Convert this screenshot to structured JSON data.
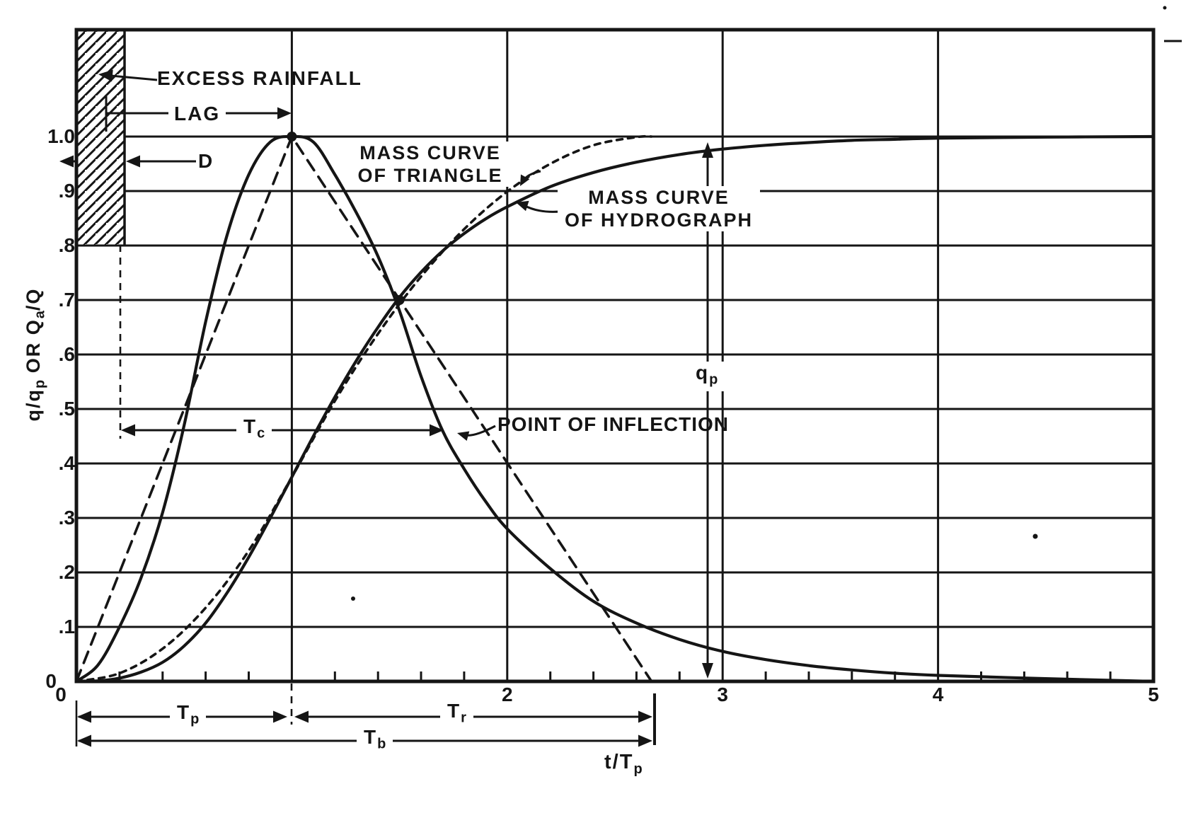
{
  "labels": {
    "excess_rainfall": "EXCESS RAINFALL",
    "lag": "LAG",
    "d": "D",
    "mass_curve_triangle_line1": "MASS CURVE",
    "mass_curve_triangle_line2": "OF TRIANGLE",
    "mass_curve_hydrograph_line1": "MASS CURVE",
    "mass_curve_hydrograph_line2": "OF HYDROGRAPH",
    "point_of_inflection": "POINT OF INFLECTION",
    "qp": {
      "main": "q",
      "sub": "p"
    },
    "tc": {
      "main": "T",
      "sub": "c"
    },
    "tp": {
      "main": "T",
      "sub": "p"
    },
    "tr": {
      "main": "T",
      "sub": "r"
    },
    "tb": {
      "main": "T",
      "sub": "b"
    },
    "x_axis": {
      "main": "t/T",
      "sub": "p"
    },
    "y_axis": {
      "p1": "q/q",
      "s1": "p",
      "p2": " OR Q",
      "s2": "a",
      "p3": "/Q"
    }
  },
  "ticks": {
    "y": [
      {
        "v": 1.0,
        "text": "1.0"
      },
      {
        "v": 0.9,
        "text": ".9"
      },
      {
        "v": 0.8,
        "text": ".8"
      },
      {
        "v": 0.7,
        "text": ".7"
      },
      {
        "v": 0.6,
        "text": ".6"
      },
      {
        "v": 0.5,
        "text": ".5"
      },
      {
        "v": 0.4,
        "text": ".4"
      },
      {
        "v": 0.3,
        "text": ".3"
      },
      {
        "v": 0.2,
        "text": ".2"
      },
      {
        "v": 0.1,
        "text": ".1"
      },
      {
        "v": 0.0,
        "text": "0"
      }
    ],
    "x": [
      {
        "v": 0,
        "text": "0"
      },
      {
        "v": 2,
        "text": "2"
      },
      {
        "v": 3,
        "text": "3"
      },
      {
        "v": 4,
        "text": "4"
      },
      {
        "v": 5,
        "text": "5"
      }
    ]
  },
  "chart_data": {
    "type": "line",
    "title": "",
    "xlabel": "t/Tp",
    "ylabel": "q/qp OR Qa/Q",
    "xlim": [
      0,
      5
    ],
    "ylim": [
      0,
      1.2
    ],
    "x_major_gridlines": [
      1,
      2,
      3,
      4
    ],
    "x_minor_tick_step": 0.2,
    "grid": "on",
    "ink_color": "#151515",
    "series": [
      {
        "name": "dimensionless unit hydrograph",
        "style": "solid",
        "shape": "smooth",
        "points": [
          [
            0,
            0
          ],
          [
            0.1,
            0.03
          ],
          [
            0.2,
            0.1
          ],
          [
            0.3,
            0.19
          ],
          [
            0.4,
            0.31
          ],
          [
            0.5,
            0.47
          ],
          [
            0.6,
            0.66
          ],
          [
            0.7,
            0.82
          ],
          [
            0.8,
            0.93
          ],
          [
            0.9,
            0.99
          ],
          [
            1.0,
            1.0
          ],
          [
            1.1,
            0.99
          ],
          [
            1.2,
            0.93
          ],
          [
            1.3,
            0.86
          ],
          [
            1.4,
            0.78
          ],
          [
            1.5,
            0.68
          ],
          [
            1.6,
            0.56
          ],
          [
            1.7,
            0.46
          ],
          [
            1.8,
            0.39
          ],
          [
            1.9,
            0.33
          ],
          [
            2.0,
            0.28
          ],
          [
            2.2,
            0.207
          ],
          [
            2.4,
            0.147
          ],
          [
            2.6,
            0.107
          ],
          [
            2.8,
            0.077
          ],
          [
            3.0,
            0.055
          ],
          [
            3.2,
            0.04
          ],
          [
            3.4,
            0.029
          ],
          [
            3.6,
            0.021
          ],
          [
            3.8,
            0.015
          ],
          [
            4.0,
            0.011
          ],
          [
            4.5,
            0.005
          ],
          [
            5.0,
            0.0
          ]
        ]
      },
      {
        "name": "mass curve of hydrograph",
        "style": "solid",
        "shape": "smooth",
        "points": [
          [
            0,
            0
          ],
          [
            0.1,
            0.001
          ],
          [
            0.2,
            0.006
          ],
          [
            0.3,
            0.017
          ],
          [
            0.4,
            0.035
          ],
          [
            0.5,
            0.065
          ],
          [
            0.6,
            0.107
          ],
          [
            0.7,
            0.163
          ],
          [
            0.8,
            0.228
          ],
          [
            0.9,
            0.3
          ],
          [
            1.0,
            0.375
          ],
          [
            1.1,
            0.45
          ],
          [
            1.2,
            0.522
          ],
          [
            1.3,
            0.589
          ],
          [
            1.4,
            0.65
          ],
          [
            1.5,
            0.705
          ],
          [
            1.6,
            0.751
          ],
          [
            1.7,
            0.79
          ],
          [
            1.8,
            0.822
          ],
          [
            1.9,
            0.849
          ],
          [
            2.0,
            0.871
          ],
          [
            2.2,
            0.908
          ],
          [
            2.4,
            0.934
          ],
          [
            2.6,
            0.953
          ],
          [
            2.8,
            0.967
          ],
          [
            3.0,
            0.977
          ],
          [
            3.2,
            0.984
          ],
          [
            3.4,
            0.989
          ],
          [
            3.6,
            0.993
          ],
          [
            3.8,
            0.995
          ],
          [
            4.0,
            0.997
          ],
          [
            4.5,
            0.999
          ],
          [
            5.0,
            1.0
          ]
        ]
      },
      {
        "name": "triangular unit hydrograph",
        "style": "dashed",
        "shape": "linear",
        "points": [
          [
            0,
            0
          ],
          [
            1,
            1
          ],
          [
            2.67,
            0
          ]
        ]
      },
      {
        "name": "mass curve of triangle",
        "style": "dashed",
        "shape": "smooth",
        "points": [
          [
            0,
            0
          ],
          [
            0.2,
            0.015
          ],
          [
            0.4,
            0.06
          ],
          [
            0.6,
            0.135
          ],
          [
            0.8,
            0.24
          ],
          [
            1.0,
            0.375
          ],
          [
            1.2,
            0.515
          ],
          [
            1.4,
            0.638
          ],
          [
            1.6,
            0.743
          ],
          [
            1.8,
            0.83
          ],
          [
            2.0,
            0.899
          ],
          [
            2.2,
            0.95
          ],
          [
            2.4,
            0.984
          ],
          [
            2.6,
            0.999
          ],
          [
            2.67,
            1.0
          ]
        ]
      }
    ],
    "markers": [
      [
        1.0,
        1.0
      ],
      [
        1.5,
        0.7
      ]
    ],
    "annotations": [
      "EXCESS RAINFALL",
      "LAG",
      "D",
      "MASS CURVE OF TRIANGLE",
      "MASS CURVE OF HYDROGRAPH",
      "POINT OF INFLECTION",
      "qp",
      "Tc",
      "Tp",
      "Tr",
      "Tb"
    ]
  }
}
